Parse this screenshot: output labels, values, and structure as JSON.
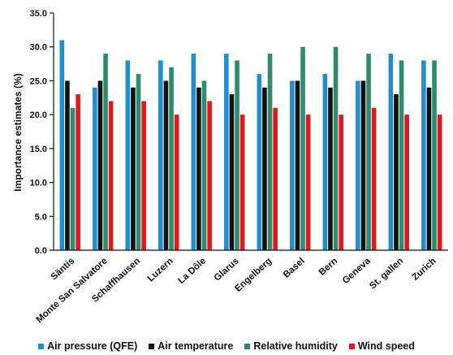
{
  "chart_data": {
    "type": "bar",
    "title": "",
    "xlabel": "",
    "ylabel": "Importance estimates (%)",
    "ylim": [
      0,
      35
    ],
    "yticks": [
      "0.0",
      "5.0",
      "10.0",
      "15.0",
      "20.0",
      "25.0",
      "30.0",
      "35.0"
    ],
    "grid": false,
    "legend_position": "bottom",
    "categories": [
      "Säntis",
      "Monte San Salvatore",
      "Schaffhausen",
      "Luzern",
      "La Dôle",
      "Glarus",
      "Engelberg",
      "Basel",
      "Bern",
      "Geneva",
      "St. gallen",
      "Zurich"
    ],
    "series": [
      {
        "name": "Air pressure (QFE)",
        "color": "#1f8fce",
        "values": [
          31,
          24,
          28,
          28,
          29,
          29,
          26,
          25,
          26,
          25,
          29,
          28
        ]
      },
      {
        "name": "Air temperature",
        "color": "#111111",
        "values": [
          25,
          25,
          24,
          25,
          24,
          23,
          24,
          25,
          24,
          25,
          23,
          24
        ]
      },
      {
        "name": "Relative humidity",
        "color": "#2e8b6e",
        "values": [
          21,
          29,
          26,
          27,
          25,
          28,
          29,
          30,
          30,
          29,
          28,
          28
        ]
      },
      {
        "name": "Wind speed",
        "color": "#e0191f",
        "values": [
          23,
          22,
          22,
          20,
          22,
          20,
          21,
          20,
          20,
          21,
          20,
          20
        ]
      }
    ]
  }
}
